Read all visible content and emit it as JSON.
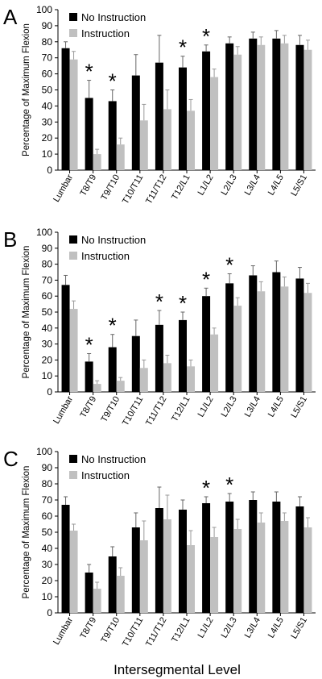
{
  "colors": {
    "no_instruction": "#000000",
    "instruction": "#c0c0c0",
    "axis": "#000000"
  },
  "figure_xlabel": "Intersegmental Level",
  "chart_data": [
    {
      "type": "bar",
      "panel_label": "A",
      "ylabel": "Percentage of Maximum Flexion",
      "ylim": [
        0,
        100
      ],
      "yticks": [
        0,
        10,
        20,
        30,
        40,
        50,
        60,
        70,
        80,
        90,
        100
      ],
      "categories": [
        "Lumbar",
        "T8/T9",
        "T9/T10",
        "T10/T11",
        "T11/T12",
        "T12/L1",
        "L1/L2",
        "L2/L3",
        "L3/L4",
        "L4/L5",
        "L5/S1"
      ],
      "series": [
        {
          "name": "No Instruction",
          "color": "#000000",
          "values": [
            76,
            45,
            43,
            59,
            67,
            64,
            74,
            79,
            82,
            82,
            78
          ],
          "errors": [
            4,
            11,
            7,
            13,
            17,
            7,
            4,
            4,
            4,
            5,
            6
          ]
        },
        {
          "name": "Instruction",
          "color": "#c0c0c0",
          "values": [
            69,
            10,
            16,
            31,
            38,
            37,
            58,
            72,
            78,
            79,
            75
          ],
          "errors": [
            5,
            3,
            4,
            10,
            12,
            7,
            5,
            5,
            5,
            5,
            6
          ]
        }
      ],
      "significance_marker": "*",
      "significant_categories": [
        "T8/T9",
        "T9/T10",
        "T12/L1",
        "L1/L2"
      ],
      "legend_position": "top-left",
      "grid": false
    },
    {
      "type": "bar",
      "panel_label": "B",
      "ylabel": "Percentage of Maximum Flexion",
      "ylim": [
        0,
        100
      ],
      "yticks": [
        0,
        10,
        20,
        30,
        40,
        50,
        60,
        70,
        80,
        90,
        100
      ],
      "categories": [
        "Lumbar",
        "T8/T9",
        "T9/T10",
        "T10/T11",
        "T11/T12",
        "T12/L1",
        "L1/L2",
        "L2/L3",
        "L3/L4",
        "L4/L5",
        "L5/S1"
      ],
      "series": [
        {
          "name": "No Instruction",
          "color": "#000000",
          "values": [
            67,
            19,
            28,
            35,
            42,
            45,
            60,
            68,
            73,
            75,
            71
          ],
          "errors": [
            6,
            5,
            8,
            10,
            9,
            5,
            5,
            6,
            6,
            7,
            7
          ]
        },
        {
          "name": "Instruction",
          "color": "#c0c0c0",
          "values": [
            52,
            5,
            7,
            15,
            18,
            16,
            36,
            54,
            63,
            66,
            62
          ],
          "errors": [
            5,
            2,
            2,
            5,
            5,
            4,
            4,
            5,
            6,
            6,
            6
          ]
        }
      ],
      "significance_marker": "*",
      "significant_categories": [
        "T8/T9",
        "T9/T10",
        "T11/T12",
        "T12/L1",
        "L1/L2",
        "L2/L3"
      ],
      "legend_position": "top-left",
      "grid": false
    },
    {
      "type": "bar",
      "panel_label": "C",
      "ylabel": "Percentage of Maximum Flexion",
      "ylim": [
        0,
        100
      ],
      "yticks": [
        0,
        10,
        20,
        30,
        40,
        50,
        60,
        70,
        80,
        90,
        100
      ],
      "categories": [
        "Lumbar",
        "T8/T9",
        "T9/T10",
        "T10/T11",
        "T11/T12",
        "T12/L1",
        "L1/L2",
        "L2/L3",
        "L3/L4",
        "L4/L5",
        "L5/S1"
      ],
      "series": [
        {
          "name": "No Instruction",
          "color": "#000000",
          "values": [
            67,
            25,
            35,
            53,
            65,
            64,
            68,
            69,
            70,
            69,
            66
          ],
          "errors": [
            5,
            5,
            6,
            9,
            13,
            6,
            4,
            5,
            5,
            6,
            6
          ]
        },
        {
          "name": "Instruction",
          "color": "#c0c0c0",
          "values": [
            51,
            15,
            23,
            45,
            58,
            42,
            47,
            52,
            56,
            57,
            53
          ],
          "errors": [
            4,
            4,
            5,
            12,
            15,
            9,
            6,
            6,
            6,
            5,
            6
          ]
        }
      ],
      "significance_marker": "*",
      "significant_categories": [
        "L1/L2",
        "L2/L3"
      ],
      "legend_position": "top-left",
      "grid": false
    }
  ]
}
